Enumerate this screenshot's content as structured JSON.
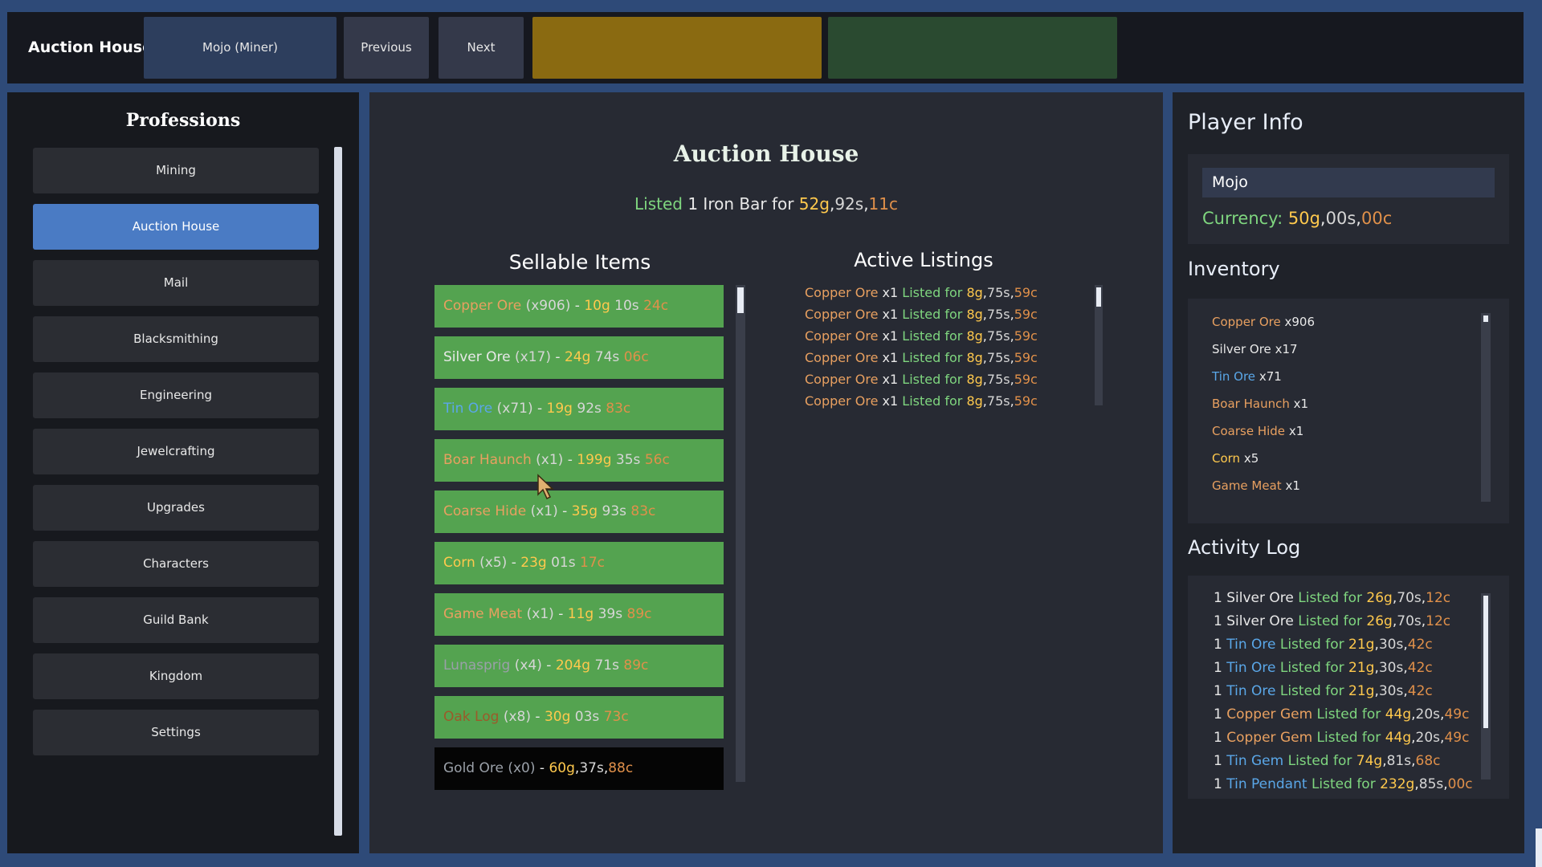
{
  "topbar": {
    "title": "Auction House",
    "character_button": "Mojo (Miner)",
    "previous_label": "Previous",
    "next_label": "Next",
    "gold_block_color": "#8a6a11",
    "green_block_color": "#2a4a30"
  },
  "professions": {
    "title": "Professions",
    "items": [
      {
        "label": "Mining",
        "active": false
      },
      {
        "label": "Auction House",
        "active": true
      },
      {
        "label": "Mail",
        "active": false
      },
      {
        "label": "Blacksmithing",
        "active": false
      },
      {
        "label": "Engineering",
        "active": false
      },
      {
        "label": "Jewelcrafting",
        "active": false
      },
      {
        "label": "Upgrades",
        "active": false
      },
      {
        "label": "Characters",
        "active": false
      },
      {
        "label": "Guild Bank",
        "active": false
      },
      {
        "label": "Kingdom",
        "active": false
      },
      {
        "label": "Settings",
        "active": false
      }
    ]
  },
  "main": {
    "title": "Auction House",
    "listed_message": {
      "prefix": "Listed",
      "qty": "1",
      "item": "Iron Bar",
      "for": "for",
      "gold": "52g",
      "silver": "92s",
      "copper": "11c"
    },
    "sellable_title": "Sellable Items",
    "sellable_items": [
      {
        "name": "Copper Ore",
        "qty": "(x906)",
        "gold": "10g",
        "silver": "10s",
        "copper": "24c",
        "name_color": "copperitem",
        "dark": false
      },
      {
        "name": "Silver Ore",
        "qty": "(x17)",
        "gold": "24g",
        "silver": "74s",
        "copper": "06c",
        "name_color": "white",
        "dark": false
      },
      {
        "name": "Tin Ore",
        "qty": "(x71)",
        "gold": "19g",
        "silver": "92s",
        "copper": "83c",
        "name_color": "tin",
        "dark": false
      },
      {
        "name": "Boar Haunch",
        "qty": "(x1)",
        "gold": "199g",
        "silver": "35s",
        "copper": "56c",
        "name_color": "copperitem",
        "dark": false
      },
      {
        "name": "Coarse Hide",
        "qty": "(x1)",
        "gold": "35g",
        "silver": "93s",
        "copper": "83c",
        "name_color": "copperitem",
        "dark": false
      },
      {
        "name": "Corn",
        "qty": "(x5)",
        "gold": "23g",
        "silver": "01s",
        "copper": "17c",
        "name_color": "gold",
        "dark": false
      },
      {
        "name": "Game Meat",
        "qty": "(x1)",
        "gold": "11g",
        "silver": "39s",
        "copper": "89c",
        "name_color": "copperitem",
        "dark": false
      },
      {
        "name": "Lunasprig",
        "qty": "(x4)",
        "gold": "204g",
        "silver": "71s",
        "copper": "89c",
        "name_color": "gray",
        "dark": false
      },
      {
        "name": "Oak Log",
        "qty": "(x8)",
        "gold": "30g",
        "silver": "03s",
        "copper": "73c",
        "name_color": "oak",
        "dark": false
      },
      {
        "name": "Gold Ore",
        "qty": "(x0)",
        "gold": "60g",
        "silver": "37s",
        "copper": "88c",
        "name_color": "gray",
        "dark": true
      }
    ],
    "active_title": "Active Listings",
    "active_listings": [
      {
        "name": "Copper Ore",
        "qty": "x1",
        "status": "Listed",
        "for": "for",
        "gold": "8g",
        "silver": "75s",
        "copper": "59c"
      },
      {
        "name": "Copper Ore",
        "qty": "x1",
        "status": "Listed",
        "for": "for",
        "gold": "8g",
        "silver": "75s",
        "copper": "59c"
      },
      {
        "name": "Copper Ore",
        "qty": "x1",
        "status": "Listed",
        "for": "for",
        "gold": "8g",
        "silver": "75s",
        "copper": "59c"
      },
      {
        "name": "Copper Ore",
        "qty": "x1",
        "status": "Listed",
        "for": "for",
        "gold": "8g",
        "silver": "75s",
        "copper": "59c"
      },
      {
        "name": "Copper Ore",
        "qty": "x1",
        "status": "Listed",
        "for": "for",
        "gold": "8g",
        "silver": "75s",
        "copper": "59c"
      },
      {
        "name": "Copper Ore",
        "qty": "x1",
        "status": "Listed",
        "for": "for",
        "gold": "8g",
        "silver": "75s",
        "copper": "59c"
      }
    ]
  },
  "player": {
    "heading": "Player Info",
    "name": "Mojo",
    "currency_label": "Currency:",
    "gold": "50g",
    "silver": "00s",
    "copper": "00c"
  },
  "inventory": {
    "heading": "Inventory",
    "items": [
      {
        "name": "Copper Ore",
        "qty": "x906",
        "color": "copperitem"
      },
      {
        "name": "Silver Ore",
        "qty": "x17",
        "color": "white"
      },
      {
        "name": "Tin Ore",
        "qty": "x71",
        "color": "tin"
      },
      {
        "name": "Boar Haunch",
        "qty": "x1",
        "color": "copperitem"
      },
      {
        "name": "Coarse Hide",
        "qty": "x1",
        "color": "copperitem"
      },
      {
        "name": "Corn",
        "qty": "x5",
        "color": "gold"
      },
      {
        "name": "Game Meat",
        "qty": "x1",
        "color": "copperitem"
      }
    ]
  },
  "activity": {
    "heading": "Activity Log",
    "entries": [
      {
        "qty": "1",
        "item": "Silver Ore",
        "color": "white",
        "status": "Listed",
        "for": "for",
        "gold": "26g",
        "silver": "70s",
        "copper": "12c"
      },
      {
        "qty": "1",
        "item": "Silver Ore",
        "color": "white",
        "status": "Listed",
        "for": "for",
        "gold": "26g",
        "silver": "70s",
        "copper": "12c"
      },
      {
        "qty": "1",
        "item": "Tin Ore",
        "color": "tin",
        "status": "Listed",
        "for": "for",
        "gold": "21g",
        "silver": "30s",
        "copper": "42c"
      },
      {
        "qty": "1",
        "item": "Tin Ore",
        "color": "tin",
        "status": "Listed",
        "for": "for",
        "gold": "21g",
        "silver": "30s",
        "copper": "42c"
      },
      {
        "qty": "1",
        "item": "Tin Ore",
        "color": "tin",
        "status": "Listed",
        "for": "for",
        "gold": "21g",
        "silver": "30s",
        "copper": "42c"
      },
      {
        "qty": "1",
        "item": "Copper Gem",
        "color": "copperitem",
        "status": "Listed",
        "for": "for",
        "gold": "44g",
        "silver": "20s",
        "copper": "49c"
      },
      {
        "qty": "1",
        "item": "Copper Gem",
        "color": "copperitem",
        "status": "Listed",
        "for": "for",
        "gold": "44g",
        "silver": "20s",
        "copper": "49c"
      },
      {
        "qty": "1",
        "item": "Tin Gem",
        "color": "tin",
        "status": "Listed",
        "for": "for",
        "gold": "74g",
        "silver": "81s",
        "copper": "68c"
      },
      {
        "qty": "1",
        "item": "Tin Pendant",
        "color": "tin",
        "status": "Listed",
        "for": "for",
        "gold": "232g",
        "silver": "85s",
        "copper": "00c"
      }
    ]
  }
}
